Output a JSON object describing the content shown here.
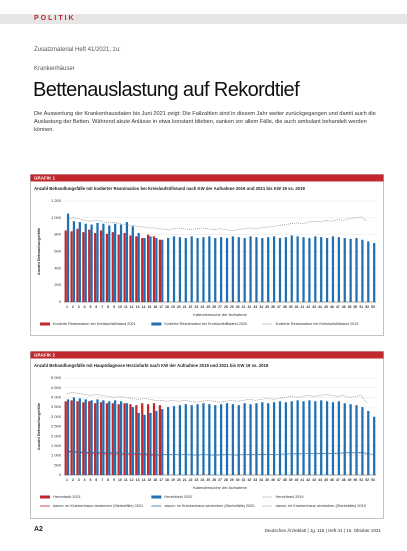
{
  "header": {
    "section": "POLITIK",
    "supplement": "Zusatzmaterial Heft 41/2021, zu:",
    "topic": "Krankenhäuser",
    "title": "Bettenauslastung auf Rekordtief",
    "intro": "Die Auswertung der Krankenhausdaten bis Juni 2021 zeigt: Die Fallzahlen sind in diesem Jahr weiter zurückgegangen und damit auch die Auslastung der Betten. Während akute Anlässe in etwa konstant blieben, sanken vor allem Fälle, die auch ambulant behandelt werden können."
  },
  "chart_data": [
    {
      "type": "bar",
      "label": "GRAFIK 1",
      "title": "Anzahl Behandlungsfälle mit kodierter Reanimation bei Kreislaufstillstand nach KW der Aufnahme 2019 und 2021 bis KW 19 vs. 2019",
      "y_label": "Anzahl Behandlungsfälle",
      "x_label": "Kalenderwoche der Aufnahme",
      "categories": [
        "1",
        "2",
        "3",
        "4",
        "5",
        "6",
        "7",
        "8",
        "9",
        "10",
        "11",
        "12",
        "13",
        "14",
        "15",
        "16",
        "17",
        "18",
        "19",
        "20",
        "21",
        "22",
        "23",
        "24",
        "25",
        "26",
        "27",
        "28",
        "29",
        "30",
        "31",
        "32",
        "33",
        "34",
        "35",
        "36",
        "37",
        "38",
        "39",
        "40",
        "41",
        "42",
        "43",
        "44",
        "45",
        "46",
        "47",
        "48",
        "49",
        "50",
        "51",
        "52",
        "53"
      ],
      "ylim": [
        0,
        1200
      ],
      "yticks": [
        0,
        200,
        400,
        600,
        800,
        {
          "value": 1000,
          "label": "1 000"
        },
        {
          "value": 1200,
          "label": "1 200"
        }
      ],
      "series": [
        {
          "name": "Kodierte Reanimation bei Kreislaufstillstand 2021",
          "color": "#c0282d",
          "mark": "bar",
          "values": [
            850,
            840,
            870,
            830,
            860,
            820,
            850,
            810,
            830,
            800,
            820,
            790,
            780,
            760,
            800,
            780,
            740,
            null,
            null,
            null,
            null,
            null,
            null,
            null,
            null,
            null,
            null,
            null,
            null,
            null,
            null,
            null,
            null,
            null,
            null,
            null,
            null,
            null,
            null,
            null,
            null,
            null,
            null,
            null,
            null,
            null,
            null,
            null,
            null,
            null,
            null,
            null,
            null
          ]
        },
        {
          "name": "Kodierte Reanimation bei Kreislaufstillstand 2020",
          "color": "#1f6fb2",
          "mark": "bar",
          "values": [
            1050,
            960,
            950,
            930,
            920,
            940,
            930,
            910,
            930,
            920,
            950,
            900,
            820,
            760,
            780,
            760,
            740,
            760,
            780,
            770,
            760,
            780,
            760,
            770,
            780,
            760,
            770,
            760,
            780,
            770,
            760,
            780,
            770,
            760,
            770,
            780,
            760,
            770,
            790,
            780,
            770,
            760,
            780,
            770,
            760,
            780,
            770,
            760,
            750,
            760,
            740,
            720,
            700
          ]
        },
        {
          "name": "Kodierte Reanimation bei Kreislaufstillstand 2019",
          "color": "#777777",
          "mark": "line",
          "dash": true,
          "values": [
            980,
            1000,
            990,
            970,
            960,
            970,
            960,
            940,
            950,
            930,
            920,
            910,
            900,
            890,
            880,
            880,
            870,
            860,
            870,
            880,
            870,
            860,
            870,
            880,
            870,
            860,
            870,
            860,
            850,
            860,
            870,
            880,
            870,
            880,
            890,
            900,
            910,
            920,
            930,
            940,
            930,
            950,
            960,
            950,
            970,
            960,
            980,
            970,
            990,
            1000,
            1010,
            960,
            null
          ]
        }
      ]
    },
    {
      "type": "bar",
      "label": "GRAFIK 2",
      "title": "Anzahl Behandlungsfälle mit Hauptdiagnose Herzinfarkt nach KW der Aufnahme 2019 und 2021 bis KW 19 vs. 2019",
      "y_label": "Anzahl Behandlungsfälle",
      "x_label": "Kalenderwoche der Aufnahme",
      "categories": [
        "1",
        "2",
        "3",
        "4",
        "5",
        "6",
        "7",
        "8",
        "9",
        "10",
        "11",
        "12",
        "13",
        "14",
        "15",
        "16",
        "17",
        "18",
        "19",
        "20",
        "21",
        "22",
        "23",
        "24",
        "25",
        "26",
        "27",
        "28",
        "29",
        "30",
        "31",
        "32",
        "33",
        "34",
        "35",
        "36",
        "37",
        "38",
        "39",
        "40",
        "41",
        "42",
        "43",
        "44",
        "45",
        "46",
        "47",
        "48",
        "49",
        "50",
        "51",
        "52",
        "53"
      ],
      "ylim": [
        0,
        5000
      ],
      "yticks": [
        0,
        500,
        {
          "value": 1000,
          "label": "1 000"
        },
        {
          "value": 1500,
          "label": "1 500"
        },
        {
          "value": 2000,
          "label": "2 000"
        },
        {
          "value": 2500,
          "label": "2 500"
        },
        {
          "value": 3000,
          "label": "3 000"
        },
        {
          "value": 3500,
          "label": "3 500"
        },
        {
          "value": 4000,
          "label": "4 000"
        },
        {
          "value": 4500,
          "label": "4 500"
        },
        {
          "value": 5000,
          "label": "5 000"
        }
      ],
      "series": [
        {
          "name": "Herzinfarkt 2021",
          "color": "#c0282d",
          "mark": "bar",
          "values": [
            3800,
            3850,
            3800,
            3750,
            3800,
            3700,
            3750,
            3700,
            3700,
            3650,
            3700,
            3650,
            3600,
            3700,
            3650,
            3700,
            3600,
            null,
            null,
            null,
            null,
            null,
            null,
            null,
            null,
            null,
            null,
            null,
            null,
            null,
            null,
            null,
            null,
            null,
            null,
            null,
            null,
            null,
            null,
            null,
            null,
            null,
            null,
            null,
            null,
            null,
            null,
            null,
            null,
            null,
            null,
            null,
            null
          ]
        },
        {
          "name": "Herzinfarkt 2020",
          "color": "#1f6fb2",
          "mark": "bar",
          "values": [
            3900,
            4000,
            3950,
            3900,
            3850,
            3900,
            3850,
            3800,
            3850,
            3800,
            3700,
            3500,
            3200,
            3100,
            3200,
            3300,
            3400,
            3500,
            3550,
            3600,
            3650,
            3600,
            3650,
            3700,
            3650,
            3600,
            3650,
            3700,
            3650,
            3600,
            3700,
            3650,
            3700,
            3750,
            3700,
            3750,
            3800,
            3750,
            3800,
            3850,
            3800,
            3850,
            3800,
            3850,
            3800,
            3750,
            3800,
            3700,
            3650,
            3600,
            3500,
            3300,
            3000
          ]
        },
        {
          "name": "Herzinfarkt 2019",
          "color": "#777777",
          "mark": "line",
          "dash": true,
          "values": [
            4200,
            4250,
            4200,
            4150,
            4100,
            4150,
            4100,
            4050,
            4000,
            4050,
            4000,
            3950,
            3900,
            3950,
            3900,
            3850,
            3850,
            3800,
            3850,
            3800,
            3850,
            3800,
            3750,
            3800,
            3850,
            3800,
            3750,
            3800,
            3850,
            3800,
            3850,
            3900,
            3850,
            3900,
            3950,
            3900,
            3950,
            4000,
            4050,
            4000,
            4050,
            4100,
            4050,
            4100,
            4150,
            4100,
            4050,
            4100,
            4000,
            4050,
            4100,
            3700,
            null
          ]
        },
        {
          "name": "davon: im Krankenhaus verstorben (Sterbefälle) 2021",
          "color": "#c0282d",
          "mark": "line",
          "dash": false,
          "values": [
            1200,
            1180,
            1150,
            1130,
            1120,
            1100,
            1090,
            1080,
            1090,
            1070,
            1060,
            1050,
            1040,
            1050,
            1030,
            1040,
            1020,
            null,
            null,
            null,
            null,
            null,
            null,
            null,
            null,
            null,
            null,
            null,
            null,
            null,
            null,
            null,
            null,
            null,
            null,
            null,
            null,
            null,
            null,
            null,
            null,
            null,
            null,
            null,
            null,
            null,
            null,
            null,
            null,
            null,
            null,
            null,
            null
          ]
        },
        {
          "name": "davon: im Krankenhaus verstorben (Sterbefälle) 2020",
          "color": "#1f6fb2",
          "mark": "line",
          "dash": false,
          "values": [
            1250,
            1200,
            1180,
            1190,
            1170,
            1160,
            1150,
            1140,
            1150,
            1130,
            1120,
            1150,
            1100,
            1080,
            1090,
            1050,
            1040,
            1060,
            1050,
            1040,
            1050,
            1040,
            1030,
            1050,
            1040,
            1030,
            1040,
            1050,
            1040,
            1030,
            1050,
            1040,
            1050,
            1060,
            1050,
            1060,
            1070,
            1080,
            1090,
            1100,
            1090,
            1100,
            1110,
            1120,
            1110,
            1120,
            1130,
            1140,
            1150,
            1160,
            1170,
            1120,
            1050
          ]
        },
        {
          "name": "davon: im Krankenhaus verstorben (Sterbefälle) 2019",
          "color": "#777777",
          "mark": "line",
          "dash": true,
          "values": [
            1180,
            1170,
            1160,
            1150,
            1140,
            1150,
            1130,
            1120,
            1110,
            1120,
            1100,
            1090,
            1080,
            1090,
            1070,
            1060,
            1050,
            1060,
            1050,
            1040,
            1050,
            1040,
            1030,
            1040,
            1050,
            1040,
            1030,
            1040,
            1050,
            1040,
            1050,
            1060,
            1050,
            1060,
            1070,
            1060,
            1070,
            1080,
            1090,
            1080,
            1090,
            1100,
            1090,
            1100,
            1110,
            1100,
            1090,
            1100,
            1080,
            1090,
            1100,
            1050,
            null
          ]
        }
      ]
    }
  ],
  "footer": {
    "page": "A2",
    "journal": "Deutsches Ärzteblatt | Jg. 118 | Heft 41 | 15. Oktober 2021"
  }
}
